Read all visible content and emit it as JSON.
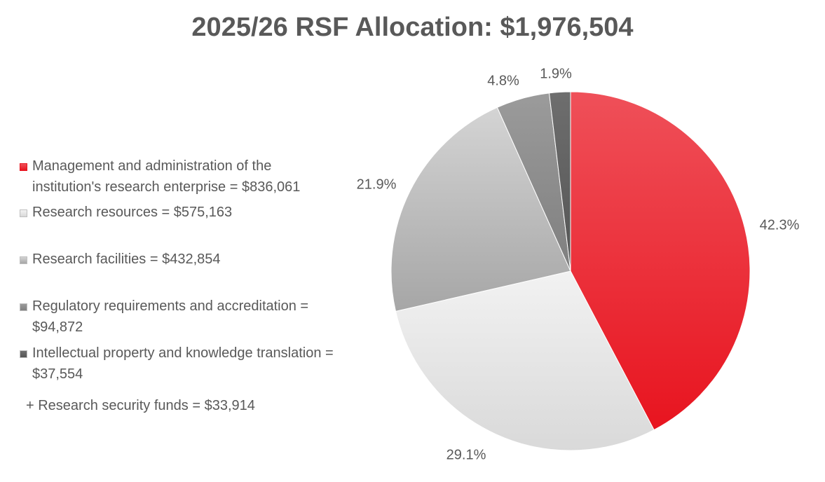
{
  "chart_data": {
    "type": "pie",
    "title": "2025/26 RSF Allocation: $1,976,504",
    "slices": [
      {
        "label": "Management and administration of the institution's research enterprise = $836,061",
        "value": 836061,
        "percent_label": "42.3%",
        "color_top": "#ef5059",
        "color_bottom": "#e8141f"
      },
      {
        "label": "Research resources = $575,163",
        "value": 575163,
        "percent_label": "29.1%",
        "color_top": "#f2f2f2",
        "color_bottom": "#d9d9d9"
      },
      {
        "label": "Research facilities = $432,854",
        "value": 432854,
        "percent_label": "21.9%",
        "color_top": "#d4d4d4",
        "color_bottom": "#a6a6a6"
      },
      {
        "label": "Regulatory requirements and accreditation = $94,872",
        "value": 94872,
        "percent_label": "4.8%",
        "color_top": "#9b9b9b",
        "color_bottom": "#7f7f7f"
      },
      {
        "label": "Intellectual property and knowledge translation = $37,554",
        "value": 37554,
        "percent_label": "1.9%",
        "color_top": "#6e6e6e",
        "color_bottom": "#555555"
      }
    ],
    "note": "+ Research security funds = $33,914"
  }
}
